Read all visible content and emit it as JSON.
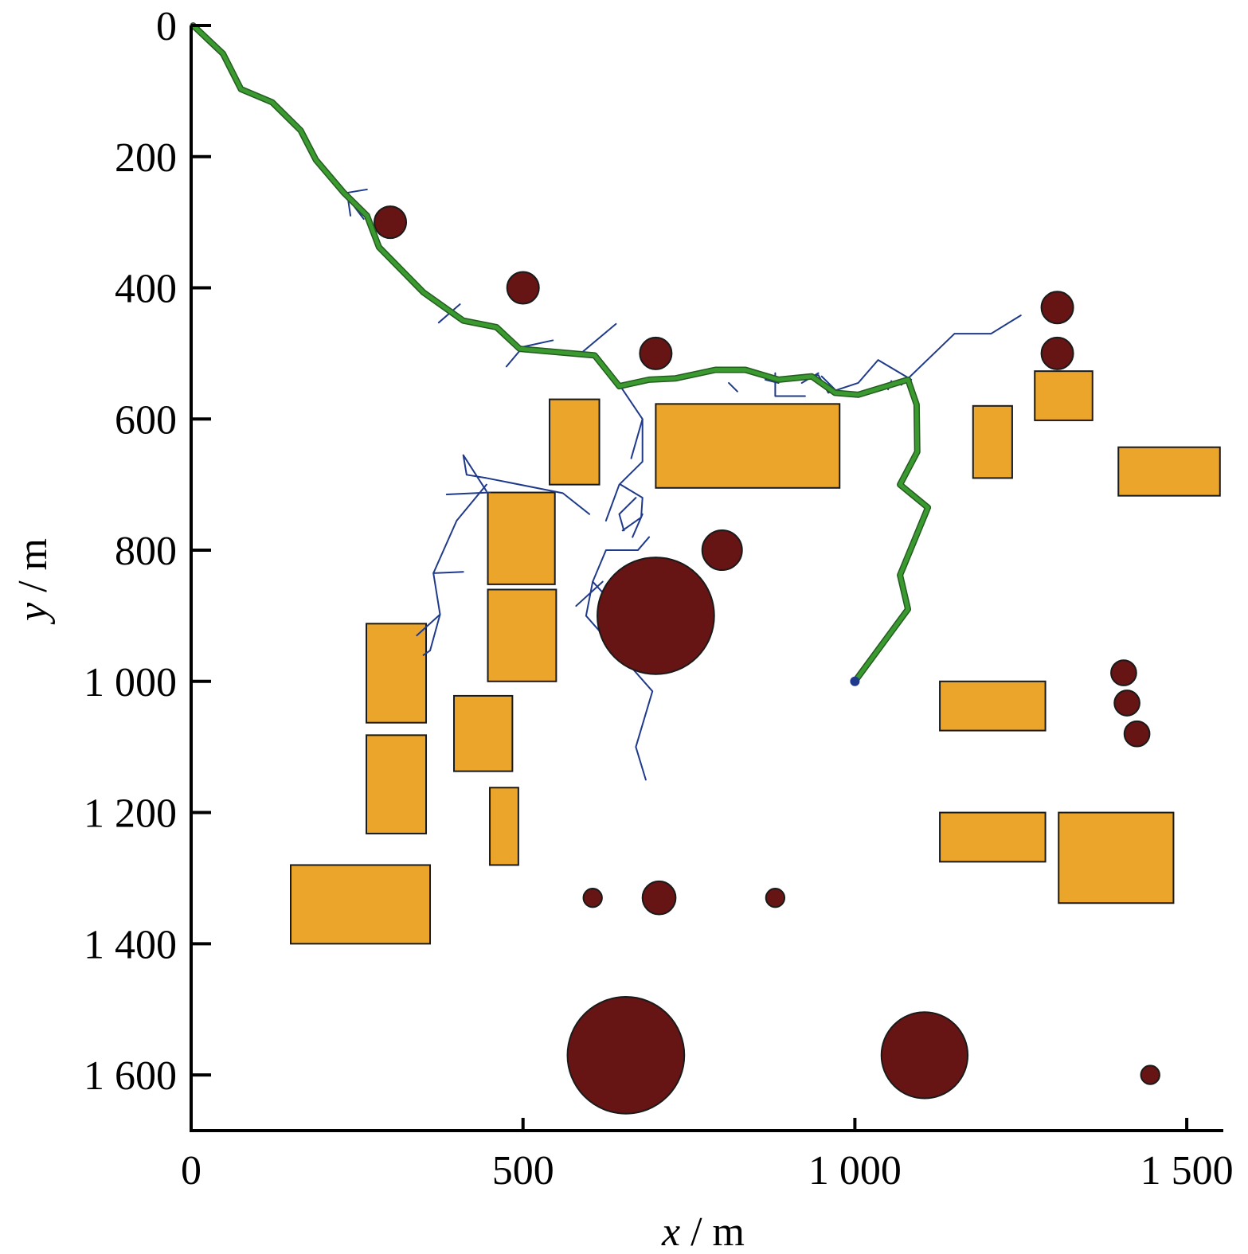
{
  "chart_data": {
    "type": "scatter",
    "title": "",
    "xlabel": {
      "var": "x",
      "unit": "m"
    },
    "ylabel": {
      "var": "y",
      "unit": "m"
    },
    "xlim": [
      0,
      1500
    ],
    "ylim": [
      0,
      1600
    ],
    "y_inverted": true,
    "grid": false,
    "x_ticks": [
      {
        "value": 0,
        "label": "0"
      },
      {
        "value": 500,
        "label": "500"
      },
      {
        "value": 1000,
        "label": "1 000"
      },
      {
        "value": 1500,
        "label": "1 500"
      }
    ],
    "y_ticks": [
      {
        "value": 0,
        "label": "0"
      },
      {
        "value": 200,
        "label": "200"
      },
      {
        "value": 400,
        "label": "400"
      },
      {
        "value": 600,
        "label": "600"
      },
      {
        "value": 800,
        "label": "800"
      },
      {
        "value": 1000,
        "label": "1 000"
      },
      {
        "value": 1200,
        "label": "1 200"
      },
      {
        "value": 1400,
        "label": "1 400"
      },
      {
        "value": 1600,
        "label": "1 600"
      }
    ],
    "colors": {
      "rect_fill": "#eba52b",
      "circle_fill": "#661414",
      "path": "#3a9a30",
      "tree": "#1f3a8a"
    },
    "rect_obstacles": [
      {
        "x0": 540,
        "y0": 570,
        "x1": 615,
        "y1": 700
      },
      {
        "x0": 700,
        "y0": 577,
        "x1": 977,
        "y1": 705
      },
      {
        "x0": 447,
        "y0": 712,
        "x1": 548,
        "y1": 852
      },
      {
        "x0": 447,
        "y0": 860,
        "x1": 550,
        "y1": 1000
      },
      {
        "x0": 264,
        "y0": 912,
        "x1": 354,
        "y1": 1063
      },
      {
        "x0": 396,
        "y0": 1022,
        "x1": 484,
        "y1": 1137
      },
      {
        "x0": 264,
        "y0": 1082,
        "x1": 354,
        "y1": 1232
      },
      {
        "x0": 450,
        "y0": 1162,
        "x1": 493,
        "y1": 1280
      },
      {
        "x0": 150,
        "y0": 1280,
        "x1": 360,
        "y1": 1400
      },
      {
        "x0": 1178,
        "y0": 580,
        "x1": 1237,
        "y1": 690
      },
      {
        "x0": 1271,
        "y0": 527,
        "x1": 1358,
        "y1": 602
      },
      {
        "x0": 1397,
        "y0": 643,
        "x1": 1550,
        "y1": 717
      },
      {
        "x0": 1128,
        "y0": 1000,
        "x1": 1287,
        "y1": 1075
      },
      {
        "x0": 1128,
        "y0": 1200,
        "x1": 1287,
        "y1": 1275
      },
      {
        "x0": 1307,
        "y0": 1200,
        "x1": 1480,
        "y1": 1338
      }
    ],
    "circle_obstacles": [
      {
        "x": 300,
        "y": 300,
        "r": 24
      },
      {
        "x": 500,
        "y": 400,
        "r": 24
      },
      {
        "x": 700,
        "y": 500,
        "r": 24
      },
      {
        "x": 1305,
        "y": 430,
        "r": 24
      },
      {
        "x": 1305,
        "y": 500,
        "r": 24
      },
      {
        "x": 800,
        "y": 800,
        "r": 30
      },
      {
        "x": 700,
        "y": 900,
        "r": 88
      },
      {
        "x": 1405,
        "y": 987,
        "r": 19
      },
      {
        "x": 1410,
        "y": 1033,
        "r": 19
      },
      {
        "x": 1425,
        "y": 1080,
        "r": 19
      },
      {
        "x": 605,
        "y": 1330,
        "r": 14
      },
      {
        "x": 705,
        "y": 1330,
        "r": 25
      },
      {
        "x": 880,
        "y": 1330,
        "r": 14
      },
      {
        "x": 655,
        "y": 1570,
        "r": 88
      },
      {
        "x": 1105,
        "y": 1570,
        "r": 65
      },
      {
        "x": 1445,
        "y": 1600,
        "r": 14
      }
    ],
    "path": [
      [
        3,
        0
      ],
      [
        48,
        43
      ],
      [
        75,
        97
      ],
      [
        122,
        117
      ],
      [
        165,
        160
      ],
      [
        188,
        205
      ],
      [
        230,
        255
      ],
      [
        265,
        290
      ],
      [
        283,
        338
      ],
      [
        350,
        407
      ],
      [
        410,
        450
      ],
      [
        460,
        460
      ],
      [
        495,
        493
      ],
      [
        608,
        503
      ],
      [
        645,
        550
      ],
      [
        690,
        540
      ],
      [
        730,
        538
      ],
      [
        790,
        525
      ],
      [
        835,
        525
      ],
      [
        885,
        540
      ],
      [
        935,
        535
      ],
      [
        970,
        560
      ],
      [
        1005,
        563
      ],
      [
        1080,
        540
      ],
      [
        1093,
        578
      ],
      [
        1094,
        650
      ],
      [
        1068,
        700
      ],
      [
        1110,
        735
      ],
      [
        1068,
        838
      ],
      [
        1080,
        890
      ],
      [
        1000,
        1000
      ]
    ],
    "tree_segments": [
      [
        [
          240,
          290
        ],
        [
          235,
          255
        ],
        [
          265,
          250
        ]
      ],
      [
        [
          260,
          295
        ],
        [
          230,
          255
        ]
      ],
      [
        [
          373,
          453
        ],
        [
          405,
          425
        ]
      ],
      [
        [
          475,
          520
        ],
        [
          500,
          490
        ],
        [
          545,
          480
        ]
      ],
      [
        [
          587,
          500
        ],
        [
          640,
          455
        ]
      ],
      [
        [
          640,
          540
        ],
        [
          680,
          600
        ],
        [
          680,
          665
        ],
        [
          645,
          700
        ],
        [
          625,
          755
        ]
      ],
      [
        [
          680,
          600
        ],
        [
          663,
          660
        ]
      ],
      [
        [
          647,
          700
        ],
        [
          680,
          720
        ],
        [
          678,
          750
        ],
        [
          650,
          770
        ]
      ],
      [
        [
          670,
          720
        ],
        [
          645,
          745
        ],
        [
          652,
          770
        ]
      ],
      [
        [
          680,
          745
        ],
        [
          665,
          780
        ]
      ],
      [
        [
          690,
          780
        ],
        [
          673,
          800
        ],
        [
          625,
          800
        ],
        [
          605,
          848
        ],
        [
          625,
          870
        ]
      ],
      [
        [
          620,
          848
        ],
        [
          580,
          885
        ]
      ],
      [
        [
          605,
          848
        ],
        [
          595,
          900
        ],
        [
          695,
          1015
        ],
        [
          670,
          1100
        ],
        [
          685,
          1150
        ]
      ],
      [
        [
          600,
          745
        ],
        [
          560,
          713
        ],
        [
          445,
          690
        ],
        [
          415,
          685
        ],
        [
          410,
          655
        ],
        [
          445,
          710
        ]
      ],
      [
        [
          450,
          712
        ],
        [
          385,
          715
        ]
      ],
      [
        [
          445,
          700
        ],
        [
          400,
          755
        ],
        [
          365,
          835
        ],
        [
          375,
          898
        ],
        [
          360,
          953
        ],
        [
          350,
          960
        ]
      ],
      [
        [
          365,
          835
        ],
        [
          410,
          833
        ]
      ],
      [
        [
          375,
          898
        ],
        [
          340,
          930
        ]
      ],
      [
        [
          880,
          530
        ],
        [
          880,
          565
        ],
        [
          925,
          565
        ]
      ],
      [
        [
          865,
          540
        ],
        [
          885,
          545
        ]
      ],
      [
        [
          810,
          545
        ],
        [
          823,
          558
        ]
      ],
      [
        [
          900,
          540
        ],
        [
          945,
          533
        ],
        [
          960,
          560
        ],
        [
          1005,
          545
        ],
        [
          1035,
          510
        ],
        [
          1085,
          540
        ]
      ],
      [
        [
          950,
          535
        ],
        [
          970,
          555
        ]
      ],
      [
        [
          920,
          545
        ],
        [
          945,
          530
        ]
      ],
      [
        [
          1070,
          548
        ],
        [
          1150,
          470
        ],
        [
          1205,
          470
        ],
        [
          1250,
          442
        ]
      ],
      [
        [
          1055,
          542
        ],
        [
          1050,
          555
        ]
      ]
    ],
    "tree_root": [
      1000,
      1000
    ]
  }
}
